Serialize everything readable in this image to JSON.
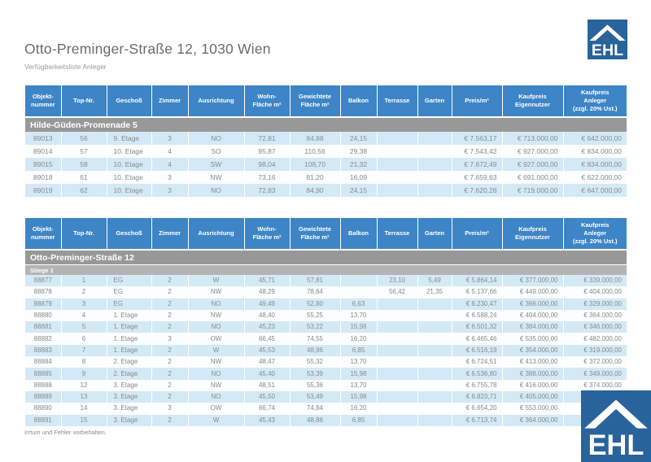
{
  "page": {
    "title": "Otto-Preminger-Straße 12, 1030 Wien",
    "subtitle": "Verfügbarkeitsliste Anleger",
    "footer": "Irrtum und Fehler vorbehalten.",
    "logo_text": "EHL"
  },
  "colors": {
    "header_blue": "#3d85c6",
    "stripe_blue": "#d3e9f6",
    "section_gray": "#989898",
    "subsection_gray": "#b4b4b4",
    "logo_blue": "#28639c",
    "row_text_gray": "#8a8a8a"
  },
  "columns": [
    "Objekt-\nnummer",
    "Top-Nr.",
    "Geschoß",
    "Zimmer",
    "Ausrichtung",
    "Wohn-\nFläche m²",
    "Gewichtete\nFläche m²",
    "Balkon",
    "Terrasse",
    "Garten",
    "Preis/m²",
    "Kaufpreis\nEigennutzer",
    "Kaufpreis\nAnleger\n(zzgl. 20% Ust.)"
  ],
  "tables": [
    {
      "section": "Hilde-Güden-Promenade 5",
      "subsection": "",
      "rows": [
        [
          "89013",
          "56",
          "9. Etage",
          "3",
          "NO",
          "72,81",
          "84,88",
          "24,15",
          "",
          "",
          "€ 7.563,17",
          "€ 713.000,00",
          "€ 642.000,00"
        ],
        [
          "89014",
          "57",
          "10. Etage",
          "4",
          "SO",
          "95,87",
          "110,56",
          "29,38",
          "",
          "",
          "€ 7.543,42",
          "€ 927.000,00",
          "€ 834.000,00"
        ],
        [
          "89015",
          "58",
          "10. Etage",
          "4",
          "SW",
          "98,04",
          "108,70",
          "21,32",
          "",
          "",
          "€ 7.672,49",
          "€ 927.000,00",
          "€ 834.000,00"
        ],
        [
          "89018",
          "61",
          "10. Etage",
          "3",
          "NW",
          "73,16",
          "81,20",
          "16,09",
          "",
          "",
          "€ 7.659,63",
          "€ 691.000,00",
          "€ 622.000,00"
        ],
        [
          "89019",
          "62",
          "10. Etage",
          "3",
          "NO",
          "72,83",
          "84,90",
          "24,15",
          "",
          "",
          "€ 7.620,28",
          "€ 719.000,00",
          "€ 647.000,00"
        ]
      ]
    },
    {
      "section": "Otto-Preminger-Straße 12",
      "subsection": "Stiege 1",
      "rows": [
        [
          "88877",
          "1",
          "EG",
          "2",
          "W",
          "45,71",
          "57,81",
          "",
          "23,10",
          "5,49",
          "€ 5.864,14",
          "€ 377.000,00",
          "€ 339.000,00"
        ],
        [
          "88878",
          "2",
          "EG",
          "2",
          "NW",
          "48,29",
          "78,64",
          "",
          "56,42",
          "21,35",
          "€ 5.137,66",
          "€ 449.000,00",
          "€ 404.000,00"
        ],
        [
          "88879",
          "3",
          "EG",
          "2",
          "NO",
          "49,49",
          "52,80",
          "6,63",
          "",
          "",
          "€ 6.230,47",
          "€ 366.000,00",
          "€ 329.000,00"
        ],
        [
          "88880",
          "4",
          "1. Etage",
          "2",
          "NW",
          "48,40",
          "55,25",
          "13,70",
          "",
          "",
          "€ 6.588,24",
          "€ 404.000,00",
          "€ 364.000,00"
        ],
        [
          "88881",
          "5",
          "1. Etage",
          "2",
          "NO",
          "45,23",
          "53,22",
          "15,98",
          "",
          "",
          "€ 6.501,32",
          "€ 384.000,00",
          "€ 346.000,00"
        ],
        [
          "88882",
          "6",
          "1. Etage",
          "3",
          "OW",
          "66,45",
          "74,55",
          "16,20",
          "",
          "",
          "€ 6.465,46",
          "€ 535.000,00",
          "€ 482.000,00"
        ],
        [
          "88883",
          "7",
          "1. Etage",
          "2",
          "W",
          "45,53",
          "48,96",
          "6,85",
          "",
          "",
          "€ 6.516,19",
          "€ 354.000,00",
          "€ 319.000,00"
        ],
        [
          "88884",
          "8",
          "2. Etage",
          "2",
          "NW",
          "48,47",
          "55,32",
          "13,70",
          "",
          "",
          "€ 6.724,51",
          "€ 413.000,00",
          "€ 372.000,00"
        ],
        [
          "88885",
          "9",
          "2. Etage",
          "2",
          "NO",
          "45,40",
          "53,39",
          "15,98",
          "",
          "",
          "€ 6.536,80",
          "€ 388.000,00",
          "€ 349.000,00"
        ],
        [
          "88888",
          "12",
          "3. Etage",
          "2",
          "NW",
          "48,51",
          "55,36",
          "13,70",
          "",
          "",
          "€ 6.755,78",
          "€ 416.000,00",
          "€ 374.000,00"
        ],
        [
          "88889",
          "13",
          "3. Etage",
          "2",
          "NO",
          "45,50",
          "53,49",
          "15,98",
          "",
          "",
          "€ 6.823,71",
          "€ 405.000,00",
          "€"
        ],
        [
          "88890",
          "14",
          "3. Etage",
          "3",
          "OW",
          "66,74",
          "74,84",
          "16,20",
          "",
          "",
          "€ 6.654,20",
          "€ 553.000,00",
          "€"
        ],
        [
          "88891",
          "15",
          "3. Etage",
          "2",
          "W",
          "45,43",
          "48,86",
          "6,85",
          "",
          "",
          "€ 6.713,74",
          "€ 364.000,00",
          "€"
        ]
      ]
    }
  ]
}
